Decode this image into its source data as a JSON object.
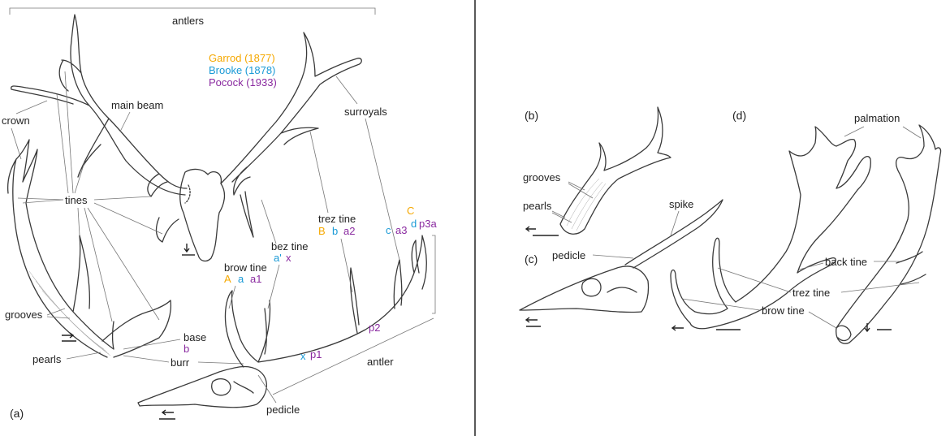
{
  "panels": {
    "a": "(a)",
    "b": "(b)",
    "c": "(c)",
    "d": "(d)"
  },
  "legend": [
    {
      "label": "Garrod (1877)",
      "color": "#f5a800"
    },
    {
      "label": "Brooke (1878)",
      "color": "#1a9ad6"
    },
    {
      "label": "Pocock (1933)",
      "color": "#8a2aa0"
    }
  ],
  "labels": {
    "antlers": "antlers",
    "main_beam": "main beam",
    "crown": "crown",
    "tines": "tines",
    "grooves": "grooves",
    "pearls": "pearls",
    "base": "base",
    "burr": "burr",
    "brow_tine": "brow tine",
    "bez_tine": "bez tine",
    "trez_tine": "trez tine",
    "surroyals": "surroyals",
    "antler": "antler",
    "pedicle": "pedicle",
    "spike": "spike",
    "palmation": "palmation",
    "back_tine": "back tine"
  },
  "codes": {
    "brow": {
      "garrod": "A",
      "brooke": "a",
      "pocock": "a1"
    },
    "bez": {
      "brooke": "a'",
      "pocock": "x"
    },
    "trez": {
      "garrod": "B",
      "brooke": "b",
      "pocock": "a2"
    },
    "crown": {
      "garrod": "C",
      "brooke_c": "c",
      "pocock_a3": "a3",
      "brooke_d": "d",
      "pocock_p3": "p3a"
    },
    "beam": {
      "brooke": "x",
      "pocock_p1": "p1",
      "pocock_p2": "p2"
    },
    "base": {
      "brooke": "b"
    }
  },
  "colors": {
    "line": "#3a3a3a",
    "leader": "#777777",
    "divider": "#222222"
  }
}
